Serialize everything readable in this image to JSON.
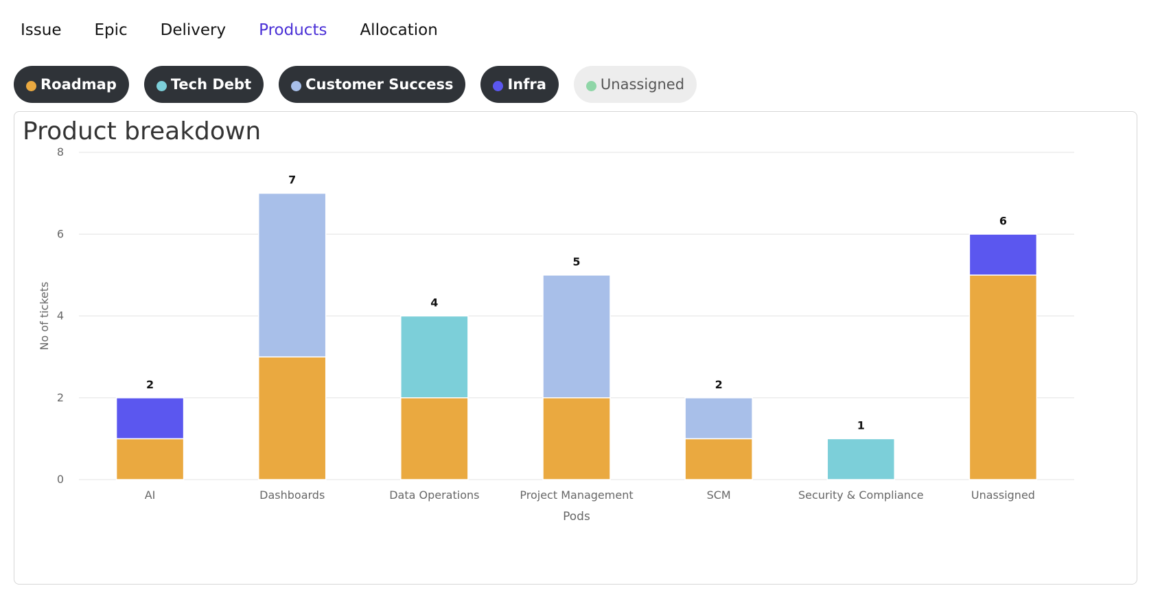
{
  "tabs": [
    {
      "label": "Issue",
      "active": false
    },
    {
      "label": "Epic",
      "active": false
    },
    {
      "label": "Delivery",
      "active": false
    },
    {
      "label": "Products",
      "active": true
    },
    {
      "label": "Allocation",
      "active": false
    }
  ],
  "filters": [
    {
      "label": "Roadmap",
      "color": "#eaa940",
      "active": true
    },
    {
      "label": "Tech Debt",
      "color": "#7ccfd9",
      "active": true
    },
    {
      "label": "Customer Success",
      "color": "#a8bfe9",
      "active": true
    },
    {
      "label": "Infra",
      "color": "#5b57ef",
      "active": true
    },
    {
      "label": "Unassigned",
      "color": "#8fd6a7",
      "active": false
    }
  ],
  "chart_data": {
    "type": "bar",
    "stacked": true,
    "title": "Product breakdown",
    "xlabel": "Pods",
    "ylabel": "No of tickets",
    "ylim": [
      0,
      8
    ],
    "yticks": [
      0,
      2,
      4,
      6,
      8
    ],
    "grid": true,
    "categories": [
      "AI",
      "Dashboards",
      "Data Operations",
      "Project Management",
      "SCM",
      "Security & Compliance",
      "Unassigned"
    ],
    "series": [
      {
        "name": "Roadmap",
        "color": "#eaa940",
        "values": [
          1,
          3,
          2,
          2,
          1,
          0,
          5
        ]
      },
      {
        "name": "Tech Debt",
        "color": "#7ccfd9",
        "values": [
          0,
          0,
          2,
          0,
          0,
          1,
          0
        ]
      },
      {
        "name": "Customer Success",
        "color": "#a8bfe9",
        "values": [
          0,
          4,
          0,
          3,
          1,
          0,
          0
        ]
      },
      {
        "name": "Infra",
        "color": "#5b57ef",
        "values": [
          1,
          0,
          0,
          0,
          0,
          0,
          1
        ]
      }
    ],
    "totals": [
      2,
      7,
      4,
      5,
      2,
      1,
      6
    ]
  }
}
